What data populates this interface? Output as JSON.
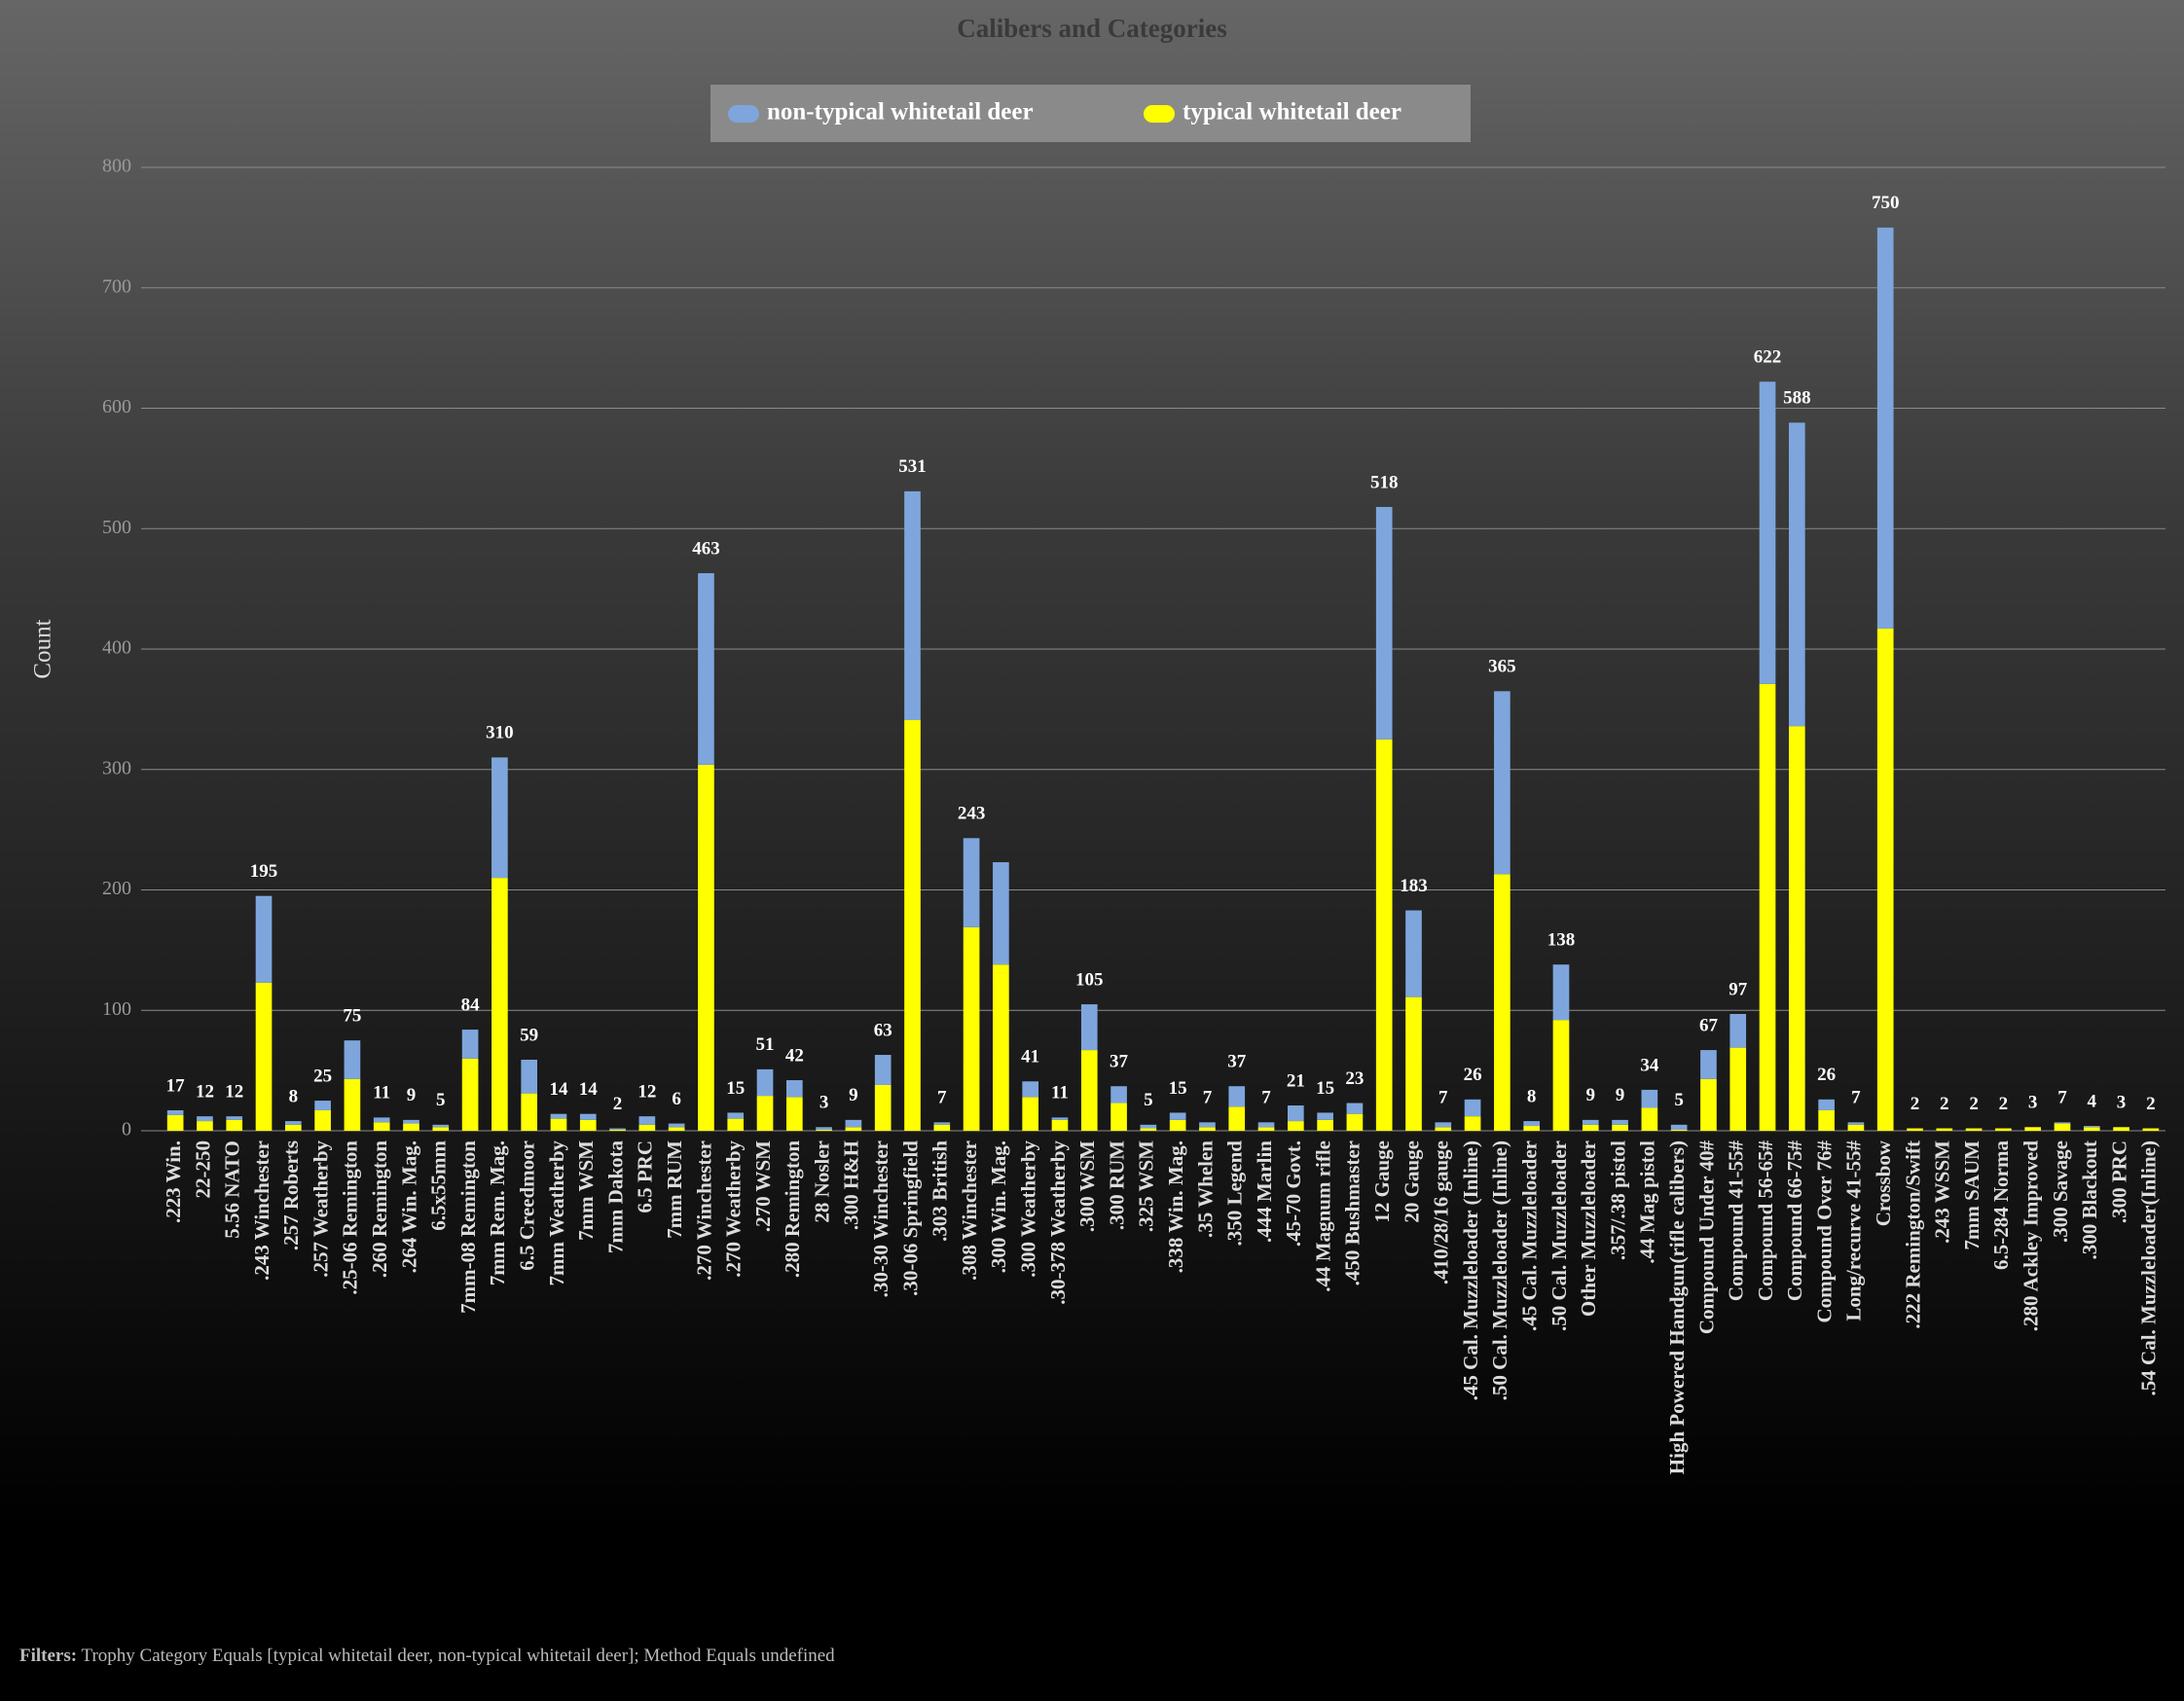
{
  "chart_data": {
    "type": "stacked_bar",
    "title": "Calibers and Categories",
    "y_label": "Count",
    "categories": [
      ".223 Win.",
      "22-250",
      "5.56 NATO",
      ".243 Winchester",
      ".257 Roberts",
      ".257 Weatherby",
      ".25-06 Remington",
      ".260 Remington",
      ".264 Win. Mag.",
      "6.5x55mm",
      "7mm-08 Remington",
      "7mm Rem. Mag.",
      "6.5 Creedmoor",
      "7mm Weatherby",
      "7mm WSM",
      "7mm Dakota",
      "6.5 PRC",
      "7mm RUM",
      ".270 Winchester",
      ".270 Weatherby",
      ".270 WSM",
      ".280 Remington",
      "28 Nosler",
      ".300 H&H",
      ".30-30 Winchester",
      ".30-06 Springfield",
      ".303 British",
      ".308 Winchester",
      ".300 Win. Mag.",
      ".300 Weatherby",
      ".30-378 Weatherby",
      ".300 WSM",
      ".300 RUM",
      ".325 WSM",
      ".338 Win. Mag.",
      ".35 Whelen",
      ".350 Legend",
      ".444 Marlin",
      ".45-70 Govt.",
      ".44 Magnum rifle",
      ".450 Bushmaster",
      "12 Gauge",
      "20 Gauge",
      ".410/28/16 gauge",
      ".45 Cal. Muzzleloader (Inline)",
      ".50 Cal. Muzzleloader (Inline)",
      ".45 Cal. Muzzleloader",
      ".50 Cal. Muzzleloader",
      "Other Muzzleloader",
      ".357/.38 pistol",
      ".44 Mag pistol",
      "High Powered Handgun(rifle calibers)",
      "Compound Under 40#",
      "Compound 41-55#",
      "Compound 56-65#",
      "Compound 66-75#",
      "Compound Over 76#",
      "Long/recurve 41-55#",
      "Crossbow",
      ".222 Remington/Swift",
      ".243 WSSM",
      "7mm SAUM",
      "6.5-284 Norma",
      ".280 Ackley Improved",
      ".300 Savage",
      ".300 Blackout",
      ".300 PRC",
      ".54 Cal. Muzzleloader(Inline)"
    ],
    "series": [
      {
        "name": "non-typical whitetail deer",
        "color": "#7ea6dc",
        "values": [
          4,
          4,
          3,
          72,
          3,
          8,
          32,
          4,
          3,
          2,
          24,
          100,
          28,
          4,
          5,
          1,
          7,
          3,
          159,
          5,
          22,
          14,
          2,
          6,
          25,
          190,
          2,
          74,
          85,
          13,
          2,
          38,
          14,
          3,
          6,
          4,
          17,
          4,
          13,
          6,
          9,
          193,
          72,
          4,
          14,
          152,
          4,
          46,
          4,
          4,
          15,
          4,
          24,
          28,
          251,
          252,
          9,
          2,
          333,
          0,
          0,
          0,
          0,
          0,
          1,
          1,
          0,
          0
        ]
      },
      {
        "name": "typical whitetail deer",
        "color": "#ffff00",
        "values": [
          13,
          8,
          9,
          123,
          5,
          17,
          43,
          7,
          6,
          3,
          60,
          210,
          31,
          10,
          9,
          1,
          5,
          3,
          304,
          10,
          29,
          28,
          1,
          3,
          38,
          341,
          5,
          169,
          138,
          28,
          9,
          67,
          23,
          2,
          9,
          3,
          20,
          3,
          8,
          9,
          14,
          325,
          111,
          3,
          12,
          213,
          4,
          92,
          5,
          5,
          19,
          1,
          43,
          69,
          371,
          336,
          17,
          5,
          417,
          2,
          2,
          2,
          2,
          3,
          6,
          3,
          3,
          2
        ]
      }
    ],
    "total_labels": [
      "17",
      "12",
      "12",
      "195",
      "8",
      "25",
      "75",
      "11",
      "9",
      "5",
      "84",
      "310",
      "59",
      "14",
      "14",
      "2",
      "12",
      "6",
      "463",
      "15",
      "51",
      "42",
      "3",
      "9",
      "63",
      "531",
      "7",
      "243",
      null,
      "41",
      "11",
      "105",
      "37",
      "5",
      "15",
      "7",
      "37",
      "7",
      "21",
      "15",
      "23",
      "518",
      "183",
      "7",
      "26",
      "365",
      "8",
      "138",
      "9",
      "9",
      "34",
      "5",
      "67",
      "97",
      "622",
      "588",
      "26",
      "7",
      "750",
      "2",
      "2",
      "2",
      "2",
      "3",
      "7",
      "4",
      "3",
      "2"
    ],
    "ylim": [
      0,
      800
    ],
    "yticks": [
      0,
      100,
      200,
      300,
      400,
      500,
      600,
      700,
      800
    ],
    "grid": true
  },
  "filters": {
    "label": "Filters:",
    "text": "Trophy Category Equals [typical whitetail deer, non-typical whitetail deer]; Method Equals undefined"
  }
}
